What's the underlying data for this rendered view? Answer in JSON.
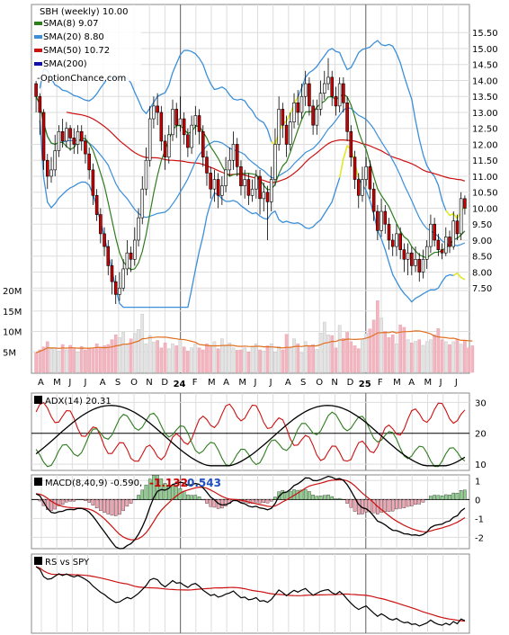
{
  "title": "SBH (weekly) 10.00",
  "watermark": "OptionChance.com",
  "legend": [
    {
      "label": "SMA(8) 9.07",
      "color": "#2e7d1e"
    },
    {
      "label": "SMA(20) 8.80",
      "color": "#3b8fd9"
    },
    {
      "label": "SMA(50) 10.72",
      "color": "#cc1111"
    },
    {
      "label": "SMA(200)",
      "color": "#1111aa"
    }
  ],
  "x_months": [
    "A",
    "M",
    "J",
    "J",
    "A",
    "S",
    "O",
    "N",
    "D",
    "24",
    "F",
    "M",
    "A",
    "M",
    "J",
    "J",
    "A",
    "S",
    "O",
    "N",
    "D",
    "25",
    "F",
    "M",
    "A",
    "M",
    "J",
    "J"
  ],
  "price_axis": [
    "15.50",
    "15.00",
    "14.50",
    "14.00",
    "13.50",
    "13.00",
    "12.50",
    "12.00",
    "11.50",
    "11.00",
    "10.50",
    "10.00",
    "9.50",
    "9.00",
    "8.50",
    "8.00",
    "7.50"
  ],
  "volume_axis": [
    "20M",
    "15M",
    "10M",
    "5M"
  ],
  "adx_panel": {
    "label": "ADX(14) 20.31",
    "axis": [
      "30",
      "20",
      "10"
    ]
  },
  "macd_panel": {
    "label": "MACD(8,40,9) -0.590,",
    "val1": "-1.132",
    "val2": "0.543",
    "axis": [
      "1",
      "0",
      "-1",
      "-2"
    ]
  },
  "rs_panel": {
    "label": "RS vs SPY"
  },
  "colors": {
    "up": "#f2f2f2",
    "down": "#cc0000",
    "sma8": "#2e7d1e",
    "sma20": "#3b8fd9",
    "sma50": "#cc1111",
    "bb_yellow": "#f0f000",
    "vol_down": "#f2b6c0",
    "vol_up": "#e4e4e4",
    "vol_ma": "#e07020"
  },
  "chart_data": {
    "type": "candlestick",
    "price_range": [
      7.0,
      15.9
    ],
    "candles": [
      [
        13.9,
        13.5,
        14.0,
        13.0
      ],
      [
        13.5,
        13.0,
        13.6,
        12.3
      ],
      [
        13.0,
        11.5,
        13.1,
        11.2
      ],
      [
        11.5,
        11.0,
        11.7,
        10.6
      ],
      [
        11.0,
        11.2,
        11.6,
        10.8
      ],
      [
        11.2,
        11.8,
        12.3,
        11.0
      ],
      [
        11.8,
        12.4,
        12.6,
        11.6
      ],
      [
        12.4,
        12.1,
        12.8,
        11.9
      ],
      [
        12.1,
        12.5,
        12.7,
        11.9
      ],
      [
        12.5,
        12.2,
        12.6,
        11.8
      ],
      [
        12.2,
        12.0,
        12.5,
        11.7
      ],
      [
        12.0,
        12.4,
        12.6,
        11.7
      ],
      [
        12.4,
        12.1,
        12.6,
        11.8
      ],
      [
        12.1,
        11.7,
        12.3,
        11.4
      ],
      [
        11.7,
        11.2,
        11.9,
        10.9
      ],
      [
        11.2,
        10.4,
        11.4,
        10.1
      ],
      [
        10.4,
        9.8,
        10.6,
        9.6
      ],
      [
        9.8,
        9.2,
        10.0,
        8.9
      ],
      [
        9.2,
        8.8,
        9.4,
        8.5
      ],
      [
        8.8,
        8.2,
        9.0,
        7.9
      ],
      [
        8.2,
        7.7,
        8.4,
        7.3
      ],
      [
        7.7,
        7.3,
        7.9,
        7.0
      ],
      [
        7.3,
        7.5,
        8.0,
        7.1
      ],
      [
        7.5,
        8.1,
        8.4,
        7.4
      ],
      [
        8.1,
        8.6,
        9.0,
        7.9
      ],
      [
        8.6,
        8.4,
        8.8,
        8.0
      ],
      [
        8.4,
        9.0,
        9.4,
        8.2
      ],
      [
        9.0,
        9.7,
        10.0,
        8.8
      ],
      [
        9.7,
        10.6,
        11.0,
        9.5
      ],
      [
        10.6,
        11.5,
        11.9,
        10.4
      ],
      [
        11.5,
        12.8,
        13.2,
        11.3
      ],
      [
        12.8,
        13.2,
        13.5,
        12.5
      ],
      [
        13.2,
        13.0,
        13.6,
        12.6
      ],
      [
        13.0,
        12.1,
        13.2,
        11.8
      ],
      [
        12.1,
        11.6,
        12.3,
        11.2
      ],
      [
        11.6,
        12.3,
        12.6,
        11.4
      ],
      [
        12.3,
        13.1,
        13.4,
        12.1
      ],
      [
        13.1,
        12.6,
        13.3,
        12.2
      ],
      [
        12.6,
        12.8,
        13.5,
        12.4
      ],
      [
        12.8,
        12.3,
        13.0,
        12.0
      ],
      [
        12.3,
        11.9,
        12.5,
        11.6
      ],
      [
        11.9,
        12.6,
        12.9,
        11.7
      ],
      [
        12.6,
        12.9,
        13.2,
        12.3
      ],
      [
        12.9,
        12.4,
        13.1,
        12.0
      ],
      [
        12.4,
        11.6,
        12.6,
        11.3
      ],
      [
        11.6,
        11.1,
        11.8,
        10.7
      ],
      [
        11.1,
        10.6,
        11.3,
        10.3
      ],
      [
        10.6,
        10.9,
        11.2,
        10.2
      ],
      [
        10.9,
        10.4,
        11.1,
        10.0
      ],
      [
        10.4,
        10.7,
        11.0,
        10.1
      ],
      [
        10.7,
        11.2,
        11.6,
        10.5
      ],
      [
        11.2,
        11.5,
        11.9,
        11.0
      ],
      [
        11.5,
        12.0,
        12.4,
        11.2
      ],
      [
        12.0,
        11.3,
        12.2,
        11.0
      ],
      [
        11.3,
        10.7,
        11.5,
        10.4
      ],
      [
        10.7,
        10.9,
        11.2,
        10.3
      ],
      [
        10.9,
        10.4,
        11.1,
        10.1
      ],
      [
        10.4,
        10.6,
        10.9,
        10.2
      ],
      [
        10.6,
        11.0,
        11.2,
        10.3
      ],
      [
        11.0,
        10.3,
        11.2,
        9.8
      ],
      [
        10.3,
        10.5,
        10.8,
        9.9
      ],
      [
        10.5,
        10.2,
        10.7,
        9.0
      ],
      [
        10.2,
        10.9,
        11.3,
        9.9
      ],
      [
        10.9,
        12.0,
        12.5,
        10.7
      ],
      [
        12.0,
        13.1,
        13.5,
        11.8
      ],
      [
        13.1,
        12.6,
        13.3,
        12.2
      ],
      [
        12.6,
        12.0,
        12.9,
        11.6
      ],
      [
        12.0,
        12.7,
        13.0,
        11.8
      ],
      [
        12.7,
        13.3,
        13.6,
        12.5
      ],
      [
        13.3,
        13.0,
        13.7,
        12.6
      ],
      [
        13.0,
        13.5,
        13.9,
        12.8
      ],
      [
        13.5,
        13.9,
        14.3,
        13.2
      ],
      [
        13.9,
        13.2,
        14.1,
        12.9
      ],
      [
        13.2,
        12.6,
        13.4,
        12.3
      ],
      [
        12.6,
        13.1,
        13.4,
        12.3
      ],
      [
        13.1,
        13.6,
        14.0,
        12.9
      ],
      [
        13.6,
        13.9,
        14.3,
        13.4
      ],
      [
        13.9,
        14.1,
        14.7,
        13.7
      ],
      [
        14.1,
        13.5,
        14.3,
        13.2
      ],
      [
        13.5,
        13.2,
        13.8,
        12.9
      ],
      [
        13.2,
        13.9,
        14.1,
        13.0
      ],
      [
        13.9,
        13.3,
        14.1,
        13.0
      ],
      [
        13.3,
        12.4,
        13.5,
        12.1
      ],
      [
        12.4,
        11.6,
        12.6,
        11.3
      ],
      [
        11.6,
        10.9,
        11.8,
        10.6
      ],
      [
        10.9,
        10.4,
        11.1,
        10.0
      ],
      [
        10.4,
        10.9,
        11.3,
        10.2
      ],
      [
        10.9,
        11.3,
        11.6,
        10.7
      ],
      [
        11.3,
        10.6,
        11.5,
        10.3
      ],
      [
        10.6,
        9.9,
        10.8,
        9.6
      ],
      [
        9.9,
        9.3,
        10.1,
        9.0
      ],
      [
        9.3,
        9.9,
        10.3,
        9.1
      ],
      [
        9.9,
        9.5,
        10.1,
        9.2
      ],
      [
        9.5,
        9.0,
        9.7,
        8.7
      ],
      [
        9.0,
        8.8,
        9.2,
        8.5
      ],
      [
        8.8,
        9.2,
        9.5,
        8.5
      ],
      [
        9.2,
        8.7,
        9.4,
        8.4
      ],
      [
        8.7,
        8.4,
        8.9,
        8.0
      ],
      [
        8.4,
        8.6,
        8.9,
        7.9
      ],
      [
        8.6,
        8.2,
        8.8,
        7.9
      ],
      [
        8.2,
        8.4,
        8.8,
        8.0
      ],
      [
        8.4,
        8.0,
        8.6,
        7.7
      ],
      [
        8.0,
        8.4,
        8.7,
        7.8
      ],
      [
        8.4,
        8.8,
        9.0,
        8.1
      ],
      [
        8.8,
        9.5,
        9.8,
        8.6
      ],
      [
        9.5,
        9.0,
        9.7,
        8.8
      ],
      [
        9.0,
        8.7,
        9.2,
        8.5
      ],
      [
        8.7,
        8.6,
        8.9,
        8.4
      ],
      [
        8.6,
        9.1,
        9.4,
        8.5
      ],
      [
        9.1,
        8.8,
        9.3,
        8.6
      ],
      [
        8.8,
        9.6,
        9.9,
        8.7
      ],
      [
        9.6,
        9.2,
        9.8,
        9.0
      ],
      [
        9.2,
        10.3,
        10.5,
        9.0
      ],
      [
        10.3,
        10.0,
        10.4,
        9.8
      ]
    ],
    "volume_millions": [
      4.8,
      5.5,
      6.2,
      7.5,
      5.8,
      6.0,
      5.2,
      6.8,
      5.5,
      6.6,
      6.0,
      5.0,
      6.3,
      5.5,
      6.0,
      5.8,
      7.0,
      6.2,
      6.5,
      6.8,
      8.0,
      9.2,
      8.5,
      9.8,
      7.0,
      8.2,
      9.5,
      10.5,
      14.2,
      7.0,
      9.0,
      7.4,
      7.8,
      6.0,
      7.2,
      5.8,
      7.0,
      6.5,
      8.0,
      6.2,
      5.2,
      6.0,
      7.0,
      6.0,
      5.5,
      7.0,
      6.5,
      7.5,
      5.8,
      8.2,
      6.5,
      7.2,
      6.0,
      5.4,
      5.5,
      6.0,
      5.0,
      6.4,
      7.0,
      5.5,
      5.2,
      6.5,
      7.0,
      5.0,
      6.3,
      5.5,
      9.3,
      6.0,
      8.2,
      7.0,
      4.8,
      7.5,
      6.4,
      6.8,
      5.6,
      9.6,
      12.3,
      9.2,
      9.0,
      6.0,
      11.5,
      8.3,
      9.8,
      7.5,
      6.5,
      5.8,
      8.2,
      9.5,
      10.6,
      12.8,
      17.5,
      13.3,
      10.0,
      8.5,
      9.2,
      7.0,
      11.6,
      11.0,
      8.0,
      7.2,
      7.6,
      8.0,
      6.6,
      7.5,
      8.0,
      9.2,
      10.7,
      8.0,
      7.5,
      6.8,
      7.5,
      8.0,
      6.9,
      7.8,
      6.0,
      6.5
    ],
    "adx": {
      "axis_range": [
        8,
        33
      ]
    },
    "macd": {
      "axis_range": [
        -2.6,
        1.3
      ]
    }
  }
}
